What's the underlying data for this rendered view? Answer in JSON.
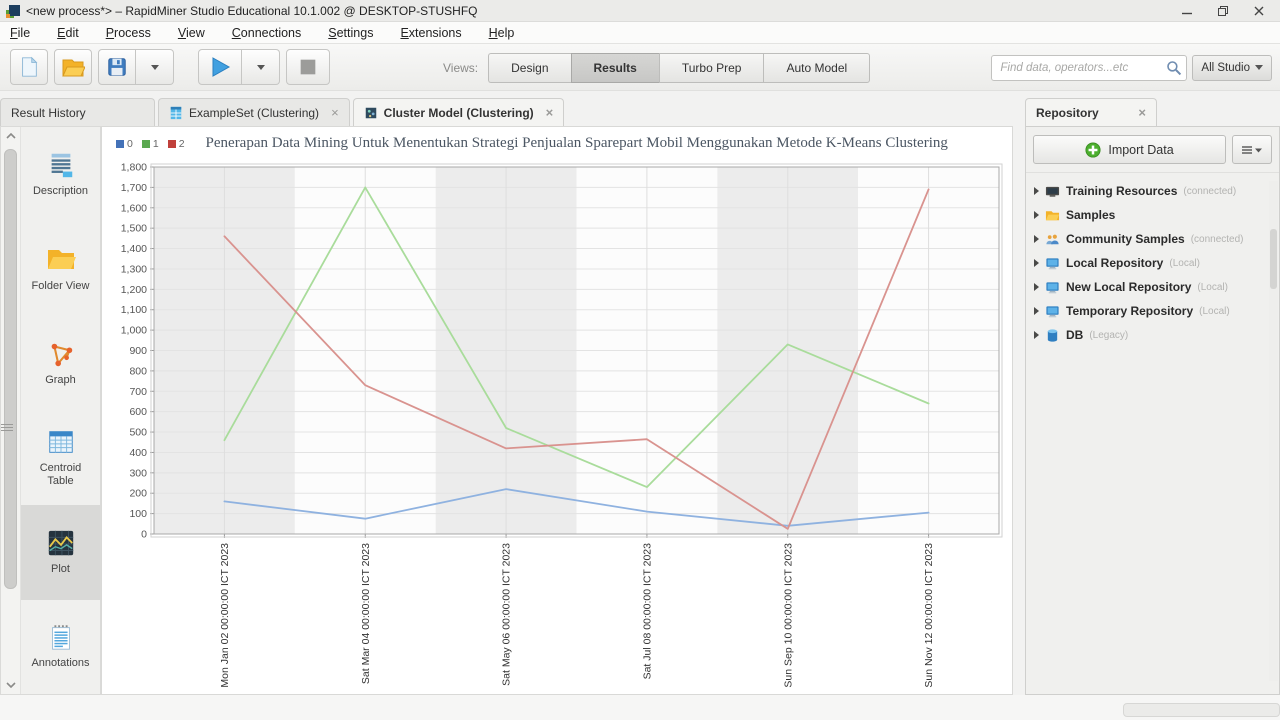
{
  "window": {
    "title": "<new process*> – RapidMiner Studio Educational 10.1.002 @ DESKTOP-STUSHFQ"
  },
  "ui": {
    "close_glyph": "×"
  },
  "menu": {
    "items": [
      "File",
      "Edit",
      "Process",
      "View",
      "Connections",
      "Settings",
      "Extensions",
      "Help"
    ]
  },
  "toolbar": {
    "views_label": "Views:",
    "view_buttons": [
      {
        "label": "Design",
        "active": false
      },
      {
        "label": "Results",
        "active": true
      },
      {
        "label": "Turbo Prep",
        "active": false
      },
      {
        "label": "Auto Model",
        "active": false
      }
    ],
    "search_placeholder": "Find data, operators...etc",
    "scope_button": "All Studio"
  },
  "tabs": [
    {
      "label": "Result History",
      "icon": null,
      "closable": false,
      "active": false,
      "panel": true
    },
    {
      "label": "ExampleSet (Clustering)",
      "icon": "exampleset",
      "closable": true,
      "active": false,
      "panel": false
    },
    {
      "label": "Cluster Model (Clustering)",
      "icon": "cluster-model",
      "closable": true,
      "active": true,
      "panel": false
    }
  ],
  "sidebar": {
    "items": [
      {
        "label": "Description",
        "icon": "description",
        "selected": false
      },
      {
        "label": "Folder View",
        "icon": "folder-view",
        "selected": false
      },
      {
        "label": "Graph",
        "icon": "graph",
        "selected": false
      },
      {
        "label": "Centroid Table",
        "icon": "centroid-table",
        "selected": false
      },
      {
        "label": "Plot",
        "icon": "plot",
        "selected": true
      },
      {
        "label": "Annotations",
        "icon": "annotations",
        "selected": false
      }
    ]
  },
  "chart_data": {
    "type": "line",
    "title": "Penerapan Data Mining Untuk Menentukan Strategi Penjualan Sparepart Mobil Menggunakan Metode K-Means Clustering",
    "x_labels": [
      "Mon Jan 02 00:00:00 ICT 2023",
      "Sat Mar 04 00:00:00 ICT 2023",
      "Sat May 06 00:00:00 ICT 2023",
      "Sat Jul 08 00:00:00 ICT 2023",
      "Sun Sep 10 00:00:00 ICT 2023",
      "Sun Nov 12 00:00:00 ICT 2023"
    ],
    "series": [
      {
        "name": "0",
        "legend_color": "#4472b8",
        "line_color": "#8fb2e0",
        "values": [
          160,
          75,
          220,
          110,
          40,
          105
        ]
      },
      {
        "name": "1",
        "legend_color": "#5aa850",
        "line_color": "#a9dc9b",
        "values": [
          460,
          1700,
          520,
          230,
          930,
          640
        ]
      },
      {
        "name": "2",
        "legend_color": "#c0403b",
        "line_color": "#d9938f",
        "values": [
          1460,
          730,
          420,
          465,
          25,
          1690
        ]
      }
    ],
    "ylim": [
      0,
      1800
    ],
    "ytick_step": 100,
    "grid": true,
    "legend_position": "top-left",
    "band_colors": [
      "#ececec",
      "#fcfcfc"
    ]
  },
  "repository": {
    "tab_label": "Repository",
    "import_button": "Import Data",
    "items": [
      {
        "label": "Training Resources",
        "suffix": "(connected)",
        "icon": "training-resources"
      },
      {
        "label": "Samples",
        "suffix": "",
        "icon": "samples-folder"
      },
      {
        "label": "Community Samples",
        "suffix": "(connected)",
        "icon": "community-samples"
      },
      {
        "label": "Local Repository",
        "suffix": "(Local)",
        "icon": "local-repository"
      },
      {
        "label": "New Local Repository",
        "suffix": "(Local)",
        "icon": "local-repository"
      },
      {
        "label": "Temporary Repository",
        "suffix": "(Local)",
        "icon": "local-repository"
      },
      {
        "label": "DB",
        "suffix": "(Legacy)",
        "icon": "database"
      }
    ]
  }
}
